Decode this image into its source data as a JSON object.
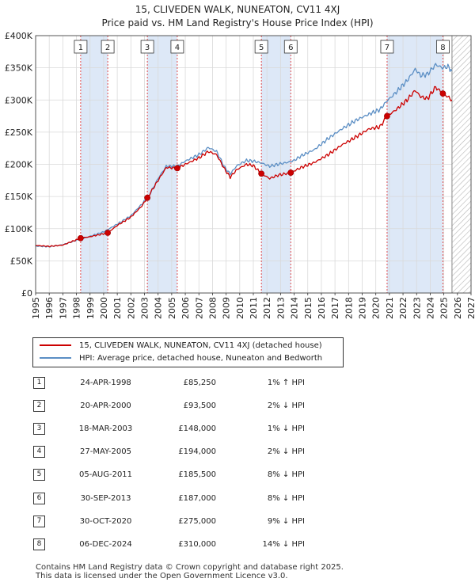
{
  "title_line1": "15, CLIVEDEN WALK, NUNEATON, CV11 4XJ",
  "title_line2": "Price paid vs. HM Land Registry's House Price Index (HPI)",
  "colors": {
    "property": "#cc0000",
    "hpi": "#5b8ec4",
    "shade": "#dde8f7",
    "marker_line": "#dd2222"
  },
  "chart_data": {
    "type": "line",
    "title": "15, CLIVEDEN WALK, NUNEATON, CV11 4XJ — Price paid vs. HM Land Registry's House Price Index (HPI)",
    "xlabel": "",
    "ylabel": "",
    "xlim": [
      1995,
      2027
    ],
    "ylim": [
      0,
      400000
    ],
    "x_ticks": [
      "1995",
      "1996",
      "1997",
      "1998",
      "1999",
      "2000",
      "2001",
      "2002",
      "2003",
      "2004",
      "2005",
      "2006",
      "2007",
      "2008",
      "2009",
      "2010",
      "2011",
      "2012",
      "2013",
      "2014",
      "2015",
      "2016",
      "2017",
      "2018",
      "2019",
      "2020",
      "2021",
      "2022",
      "2023",
      "2024",
      "2025",
      "2026",
      "2027"
    ],
    "y_ticks": [
      {
        "value": 0,
        "label": "£0"
      },
      {
        "value": 50000,
        "label": "£50K"
      },
      {
        "value": 100000,
        "label": "£100K"
      },
      {
        "value": 150000,
        "label": "£150K"
      },
      {
        "value": 200000,
        "label": "£200K"
      },
      {
        "value": 250000,
        "label": "£250K"
      },
      {
        "value": 300000,
        "label": "£300K"
      },
      {
        "value": 350000,
        "label": "£350K"
      },
      {
        "value": 400000,
        "label": "£400K"
      }
    ],
    "data_end": 2025.6,
    "shaded_periods": [
      [
        1998.31,
        2000.3
      ],
      [
        2003.21,
        2005.4
      ],
      [
        2011.59,
        2013.75
      ],
      [
        2020.83,
        2024.93
      ]
    ],
    "series": [
      {
        "name": "15, CLIVEDEN WALK, NUNEATON, CV11 4XJ (detached house)",
        "color": "#cc0000",
        "points": [
          [
            1995.0,
            74000
          ],
          [
            1996.0,
            72500
          ],
          [
            1997.0,
            74500
          ],
          [
            1998.31,
            85250
          ],
          [
            1999.0,
            87500
          ],
          [
            2000.3,
            93500
          ],
          [
            2001.0,
            105000
          ],
          [
            2002.0,
            118000
          ],
          [
            2002.8,
            135000
          ],
          [
            2003.21,
            148000
          ],
          [
            2004.0,
            175000
          ],
          [
            2004.6,
            195000
          ],
          [
            2005.41,
            194000
          ],
          [
            2006.0,
            200000
          ],
          [
            2007.0,
            210000
          ],
          [
            2007.7,
            220000
          ],
          [
            2008.3,
            215000
          ],
          [
            2008.9,
            192000
          ],
          [
            2009.3,
            180000
          ],
          [
            2009.8,
            192000
          ],
          [
            2010.5,
            200000
          ],
          [
            2011.0,
            198000
          ],
          [
            2011.59,
            185500
          ],
          [
            2012.2,
            178000
          ],
          [
            2012.8,
            183000
          ],
          [
            2013.75,
            187000
          ],
          [
            2014.5,
            195000
          ],
          [
            2015.5,
            203000
          ],
          [
            2016.5,
            215000
          ],
          [
            2017.5,
            230000
          ],
          [
            2018.5,
            242000
          ],
          [
            2019.5,
            255000
          ],
          [
            2020.3,
            258000
          ],
          [
            2020.83,
            275000
          ],
          [
            2021.5,
            285000
          ],
          [
            2022.3,
            300000
          ],
          [
            2022.9,
            315000
          ],
          [
            2023.3,
            305000
          ],
          [
            2023.8,
            302000
          ],
          [
            2024.4,
            320000
          ],
          [
            2024.93,
            310000
          ],
          [
            2025.3,
            305000
          ],
          [
            2025.6,
            300000
          ]
        ]
      },
      {
        "name": "HPI: Average price, detached house, Nuneaton and Bedworth",
        "color": "#5b8ec4",
        "points": [
          [
            1995.0,
            73000
          ],
          [
            1996.0,
            72000
          ],
          [
            1997.0,
            75000
          ],
          [
            1998.0,
            82000
          ],
          [
            1999.0,
            88000
          ],
          [
            2000.0,
            95000
          ],
          [
            2001.0,
            107000
          ],
          [
            2002.0,
            120000
          ],
          [
            2002.8,
            138000
          ],
          [
            2003.3,
            150000
          ],
          [
            2004.0,
            178000
          ],
          [
            2004.6,
            197000
          ],
          [
            2005.4,
            197000
          ],
          [
            2006.0,
            205000
          ],
          [
            2007.0,
            215000
          ],
          [
            2007.7,
            226000
          ],
          [
            2008.3,
            220000
          ],
          [
            2008.9,
            195000
          ],
          [
            2009.3,
            185000
          ],
          [
            2009.8,
            198000
          ],
          [
            2010.5,
            206000
          ],
          [
            2011.0,
            205000
          ],
          [
            2011.6,
            202000
          ],
          [
            2012.2,
            197000
          ],
          [
            2012.8,
            200000
          ],
          [
            2013.5,
            203000
          ],
          [
            2014.0,
            206000
          ],
          [
            2014.5,
            213000
          ],
          [
            2015.5,
            223000
          ],
          [
            2016.5,
            240000
          ],
          [
            2017.5,
            255000
          ],
          [
            2018.5,
            268000
          ],
          [
            2019.5,
            278000
          ],
          [
            2020.3,
            285000
          ],
          [
            2020.8,
            298000
          ],
          [
            2021.5,
            312000
          ],
          [
            2022.3,
            330000
          ],
          [
            2022.9,
            348000
          ],
          [
            2023.3,
            338000
          ],
          [
            2023.8,
            340000
          ],
          [
            2024.4,
            355000
          ],
          [
            2024.9,
            350000
          ],
          [
            2025.3,
            352000
          ],
          [
            2025.6,
            345000
          ]
        ]
      }
    ],
    "sales": [
      {
        "n": "1",
        "x": 1998.31,
        "price": 85250
      },
      {
        "n": "2",
        "x": 2000.3,
        "price": 93500
      },
      {
        "n": "3",
        "x": 2003.21,
        "price": 148000
      },
      {
        "n": "4",
        "x": 2005.41,
        "price": 194000
      },
      {
        "n": "5",
        "x": 2011.59,
        "price": 185500
      },
      {
        "n": "6",
        "x": 2013.75,
        "price": 187000
      },
      {
        "n": "7",
        "x": 2020.83,
        "price": 275000
      },
      {
        "n": "8",
        "x": 2024.93,
        "price": 310000
      }
    ]
  },
  "legend": {
    "property_label": "15, CLIVEDEN WALK, NUNEATON, CV11 4XJ (detached house)",
    "hpi_label": "HPI: Average price, detached house, Nuneaton and Bedworth"
  },
  "table": [
    {
      "n": "1",
      "date": "24-APR-1998",
      "price": "£85,250",
      "hpi": "1% ↑ HPI"
    },
    {
      "n": "2",
      "date": "20-APR-2000",
      "price": "£93,500",
      "hpi": "2% ↓ HPI"
    },
    {
      "n": "3",
      "date": "18-MAR-2003",
      "price": "£148,000",
      "hpi": "1% ↓ HPI"
    },
    {
      "n": "4",
      "date": "27-MAY-2005",
      "price": "£194,000",
      "hpi": "2% ↓ HPI"
    },
    {
      "n": "5",
      "date": "05-AUG-2011",
      "price": "£185,500",
      "hpi": "8% ↓ HPI"
    },
    {
      "n": "6",
      "date": "30-SEP-2013",
      "price": "£187,000",
      "hpi": "8% ↓ HPI"
    },
    {
      "n": "7",
      "date": "30-OCT-2020",
      "price": "£275,000",
      "hpi": "9% ↓ HPI"
    },
    {
      "n": "8",
      "date": "06-DEC-2024",
      "price": "£310,000",
      "hpi": "14% ↓ HPI"
    }
  ],
  "footer_line1": "Contains HM Land Registry data © Crown copyright and database right 2025.",
  "footer_line2": "This data is licensed under the Open Government Licence v3.0."
}
